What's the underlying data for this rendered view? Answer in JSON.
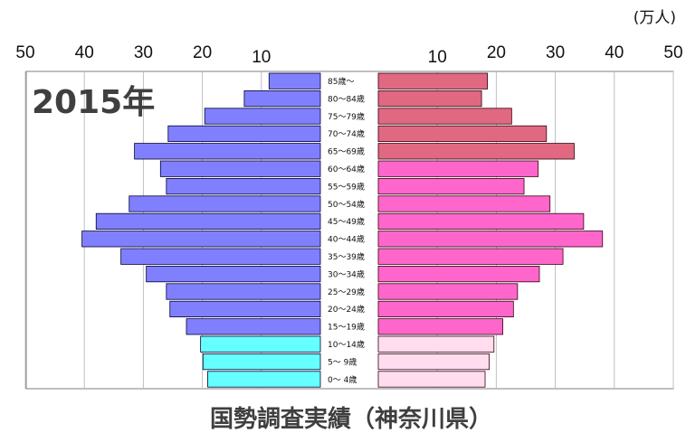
{
  "chart_data": {
    "type": "bar",
    "orientation": "horizontal-pyramid",
    "unit_label": "(万人)",
    "year_label": "2015年",
    "caption": "国勢調査実績（神奈川県）",
    "x_ticks": [
      "50",
      "40",
      "30",
      "20",
      "10",
      "10",
      "20",
      "30",
      "40",
      "50"
    ],
    "xlim": [
      0,
      50
    ],
    "grid": true,
    "categories": [
      "85歳～",
      "80～84歳",
      "75～79歳",
      "70～74歳",
      "65～69歳",
      "60～64歳",
      "55～59歳",
      "50～54歳",
      "45～49歳",
      "40～44歳",
      "35～39歳",
      "30～34歳",
      "25～29歳",
      "20～24歳",
      "15～19歳",
      "10～14歳",
      "5～ 9歳",
      "0～ 4歳"
    ],
    "series": [
      {
        "side": "left",
        "values": [
          8.7,
          12.9,
          19.6,
          25.8,
          31.5,
          27.1,
          26.1,
          32.4,
          38.0,
          40.4,
          33.8,
          29.5,
          26.1,
          25.5,
          22.7,
          20.3,
          19.9,
          19.1
        ]
      },
      {
        "side": "right",
        "values": [
          18.5,
          17.5,
          22.6,
          28.5,
          33.2,
          27.1,
          24.7,
          29.1,
          34.8,
          38.0,
          31.3,
          27.3,
          23.6,
          22.9,
          21.1,
          19.6,
          18.8,
          18.1
        ]
      }
    ]
  },
  "colors": {
    "male": "#8080ff",
    "male_elderly": "#8080ff",
    "male_child": "#66ffff",
    "female": "#ff66cc",
    "female_elderly": "#e06880",
    "female_child": "#ffddee",
    "grid": "#bfbfbf"
  }
}
